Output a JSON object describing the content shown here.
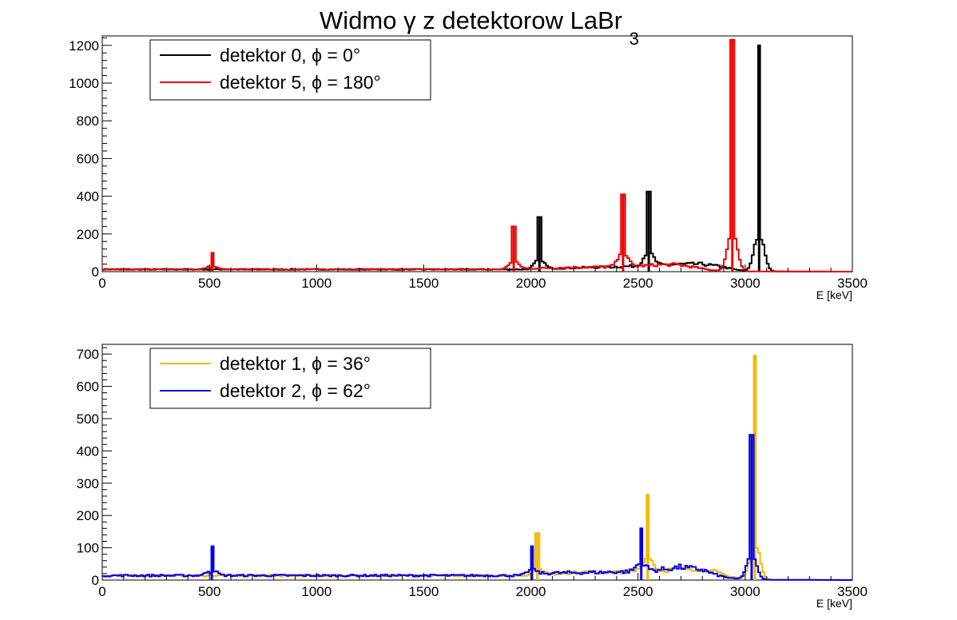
{
  "page": {
    "title": "Widmo γ z detektorow LaBr",
    "title_subscript": "3"
  },
  "chart_data": [
    {
      "type": "line",
      "step": true,
      "xlabel": "E [keV]",
      "ylabel": "",
      "xlim": [
        0,
        3500
      ],
      "ylim": [
        0,
        1250
      ],
      "xticks": [
        0,
        500,
        1000,
        1500,
        2000,
        2500,
        3000,
        3500
      ],
      "yticks": [
        0,
        200,
        400,
        600,
        800,
        1000,
        1200
      ],
      "grid": false,
      "legend_position": "top-left",
      "series": [
        {
          "name": "detektor 0, ϕ = 0°",
          "color": "#000000",
          "background": {
            "level": 12,
            "end": 2000,
            "hump": [
              [
                2000,
                14
              ],
              [
                2200,
                20
              ],
              [
                2400,
                26
              ],
              [
                2600,
                34
              ],
              [
                2700,
                40
              ],
              [
                2800,
                40
              ],
              [
                2880,
                28
              ],
              [
                2950,
                12
              ],
              [
                3000,
                4
              ],
              [
                3050,
                1
              ],
              [
                3500,
                0
              ]
            ]
          },
          "peaks": [
            {
              "x": 511,
              "y": 0
            },
            {
              "x": 2040,
              "y": 290
            },
            {
              "x": 2550,
              "y": 425
            },
            {
              "x": 3065,
              "y": 1200
            }
          ]
        },
        {
          "name": "detektor 5, ϕ = 180°",
          "color": "#ee0000",
          "background": {
            "level": 12,
            "end": 1900,
            "hump": [
              [
                1900,
                14
              ],
              [
                2100,
                20
              ],
              [
                2300,
                25
              ],
              [
                2500,
                30
              ],
              [
                2600,
                36
              ],
              [
                2680,
                38
              ],
              [
                2760,
                24
              ],
              [
                2830,
                10
              ],
              [
                2900,
                3
              ],
              [
                2950,
                1
              ],
              [
                3500,
                0
              ]
            ]
          },
          "peaks": [
            {
              "x": 511,
              "y": 100
            },
            {
              "x": 1920,
              "y": 240
            },
            {
              "x": 2430,
              "y": 410
            },
            {
              "x": 2940,
              "y": 1230
            }
          ]
        }
      ]
    },
    {
      "type": "line",
      "step": true,
      "xlabel": "E [keV]",
      "ylabel": "",
      "xlim": [
        0,
        3500
      ],
      "ylim": [
        0,
        730
      ],
      "xticks": [
        0,
        500,
        1000,
        1500,
        2000,
        2500,
        3000,
        3500
      ],
      "yticks": [
        0,
        100,
        200,
        300,
        400,
        500,
        600,
        700
      ],
      "grid": false,
      "legend_position": "top-left",
      "series": [
        {
          "name": "detektor 1, ϕ = 36°",
          "color": "#f5b800",
          "background": {
            "level": 14,
            "end": 2000,
            "hump": [
              [
                2000,
                15
              ],
              [
                2150,
                22
              ],
              [
                2400,
                25
              ],
              [
                2600,
                30
              ],
              [
                2750,
                36
              ],
              [
                2850,
                28
              ],
              [
                2920,
                12
              ],
              [
                2980,
                5
              ],
              [
                3030,
                2
              ],
              [
                3070,
                1
              ],
              [
                3500,
                0
              ]
            ]
          },
          "peaks": [
            {
              "x": 2030,
              "y": 145
            },
            {
              "x": 2545,
              "y": 265
            },
            {
              "x": 3045,
              "y": 695
            }
          ]
        },
        {
          "name": "detektor 2, ϕ = 62°",
          "color": "#0000ee",
          "background": {
            "level": 14,
            "end": 1990,
            "hump": [
              [
                1990,
                15
              ],
              [
                2100,
                22
              ],
              [
                2350,
                24
              ],
              [
                2550,
                28
              ],
              [
                2700,
                40
              ],
              [
                2800,
                32
              ],
              [
                2870,
                15
              ],
              [
                2930,
                6
              ],
              [
                2990,
                2
              ],
              [
                3040,
                1
              ],
              [
                3500,
                0
              ]
            ]
          },
          "peaks": [
            {
              "x": 511,
              "y": 105
            },
            {
              "x": 2005,
              "y": 105
            },
            {
              "x": 2515,
              "y": 160
            },
            {
              "x": 3030,
              "y": 450
            }
          ]
        }
      ]
    }
  ]
}
